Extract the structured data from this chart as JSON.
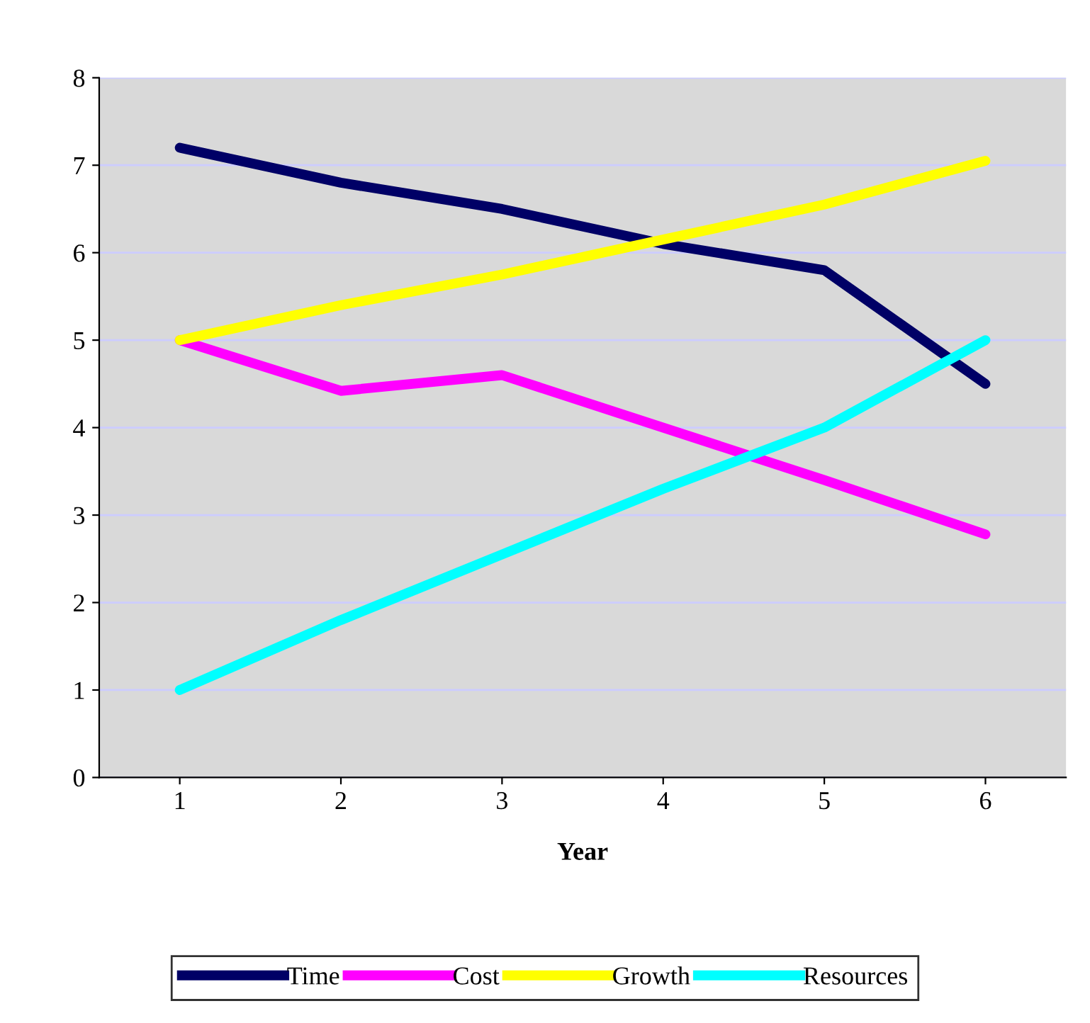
{
  "chart_data": {
    "type": "line",
    "xlabel": "Year",
    "categories": [
      "1",
      "2",
      "3",
      "4",
      "5",
      "6"
    ],
    "series": [
      {
        "name": "Time",
        "color": "#000066",
        "values": [
          7.2,
          6.8,
          6.5,
          6.1,
          5.8,
          4.5
        ]
      },
      {
        "name": "Cost",
        "color": "#ff00ff",
        "values": [
          5.0,
          4.42,
          4.6,
          4.0,
          3.4,
          2.78
        ]
      },
      {
        "name": "Growth",
        "color": "#ffff00",
        "values": [
          5.0,
          5.4,
          5.75,
          6.15,
          6.55,
          7.05
        ]
      },
      {
        "name": "Resources",
        "color": "#00ffff",
        "values": [
          1.0,
          1.8,
          2.55,
          3.3,
          4.0,
          5.0
        ]
      }
    ],
    "ylim": [
      0,
      8
    ],
    "yticks": [
      0,
      1,
      2,
      3,
      4,
      5,
      6,
      7,
      8
    ],
    "grid": "y",
    "legend": "bottom",
    "marker": "none",
    "line_style": "solid"
  }
}
